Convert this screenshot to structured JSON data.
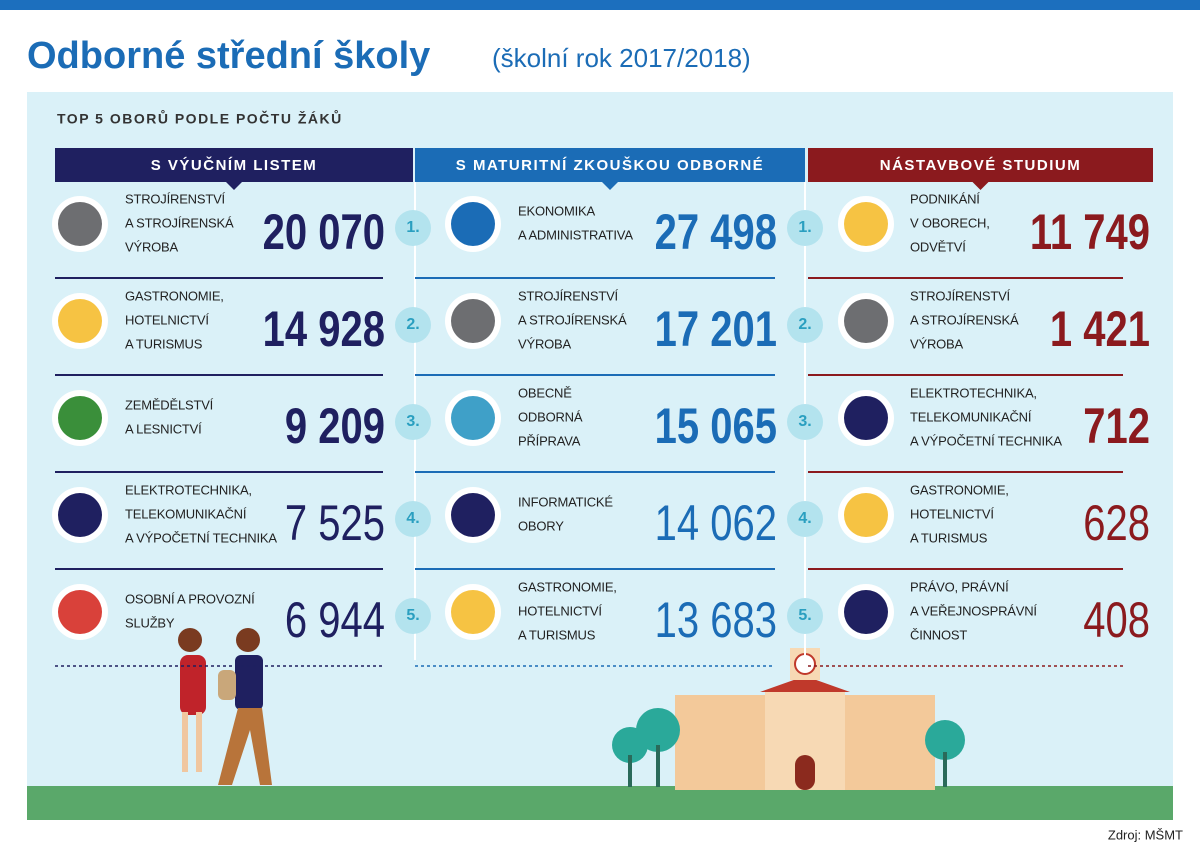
{
  "header": {
    "title": "Odborné střední školy",
    "subtitle": "(školní rok 2017/2018)"
  },
  "panel": {
    "heading": "TOP 5 OBORŮ PODLE POČTU ŽÁKŮ"
  },
  "columns": [
    {
      "title": "S VÝUČNÍM LISTEM",
      "rows": [
        {
          "label": [
            "STROJÍRENSTVÍ",
            "A STROJÍRENSKÁ",
            "VÝROBA"
          ],
          "value": "20 070"
        },
        {
          "label": [
            "GASTRONOMIE,",
            "HOTELNICTVÍ",
            "A TURISMUS"
          ],
          "value": "14 928"
        },
        {
          "label": [
            "ZEMĚDĚLSTVÍ",
            "A LESNICTVÍ"
          ],
          "value": "9 209"
        },
        {
          "label": [
            "ELEKTROTECHNIKA,",
            "TELEKOMUNIKAČNÍ",
            "A VÝPOČETNÍ TECHNIKA"
          ],
          "value": "7 525"
        },
        {
          "label": [
            "OSOBNÍ A PROVOZNÍ",
            "SLUŽBY"
          ],
          "value": "6 944"
        }
      ]
    },
    {
      "title": "S MATURITNÍ ZKOUŠKOU ODBORNÉ",
      "rows": [
        {
          "label": [
            "EKONOMIKA",
            "A ADMINISTRATIVA"
          ],
          "value": "27 498"
        },
        {
          "label": [
            "STROJÍRENSTVÍ",
            "A STROJÍRENSKÁ",
            "VÝROBA"
          ],
          "value": "17 201"
        },
        {
          "label": [
            "OBECNĚ",
            "ODBORNÁ",
            "PŘÍPRAVA"
          ],
          "value": "15 065"
        },
        {
          "label": [
            "INFORMATICKÉ",
            "OBORY"
          ],
          "value": "14 062"
        },
        {
          "label": [
            "GASTRONOMIE,",
            "HOTELNICTVÍ",
            "A TURISMUS"
          ],
          "value": "13 683"
        }
      ]
    },
    {
      "title": "NÁSTAVBOVÉ STUDIUM",
      "rows": [
        {
          "label": [
            "PODNIKÁNÍ",
            "V OBORECH,",
            "ODVĚTVÍ"
          ],
          "value": "11 749"
        },
        {
          "label": [
            "STROJÍRENSTVÍ",
            "A STROJÍRENSKÁ",
            "VÝROBA"
          ],
          "value": "1 421"
        },
        {
          "label": [
            "ELEKTROTECHNIKA,",
            "TELEKOMUNIKAČNÍ",
            "A VÝPOČETNÍ TECHNIKA"
          ],
          "value": "712"
        },
        {
          "label": [
            "GASTRONOMIE,",
            "HOTELNICTVÍ",
            "A TURISMUS"
          ],
          "value": "628"
        },
        {
          "label": [
            "PRÁVO, PRÁVNÍ",
            "A VEŘEJNOSPRÁVNÍ",
            "ČINNOST"
          ],
          "value": "408"
        }
      ]
    }
  ],
  "rank_markers": [
    [
      "1.",
      "2.",
      "3.",
      "4.",
      "5."
    ],
    [
      "1.",
      "2.",
      "3.",
      "4.",
      "5."
    ]
  ],
  "source": "Zdroj: MŠMT"
}
